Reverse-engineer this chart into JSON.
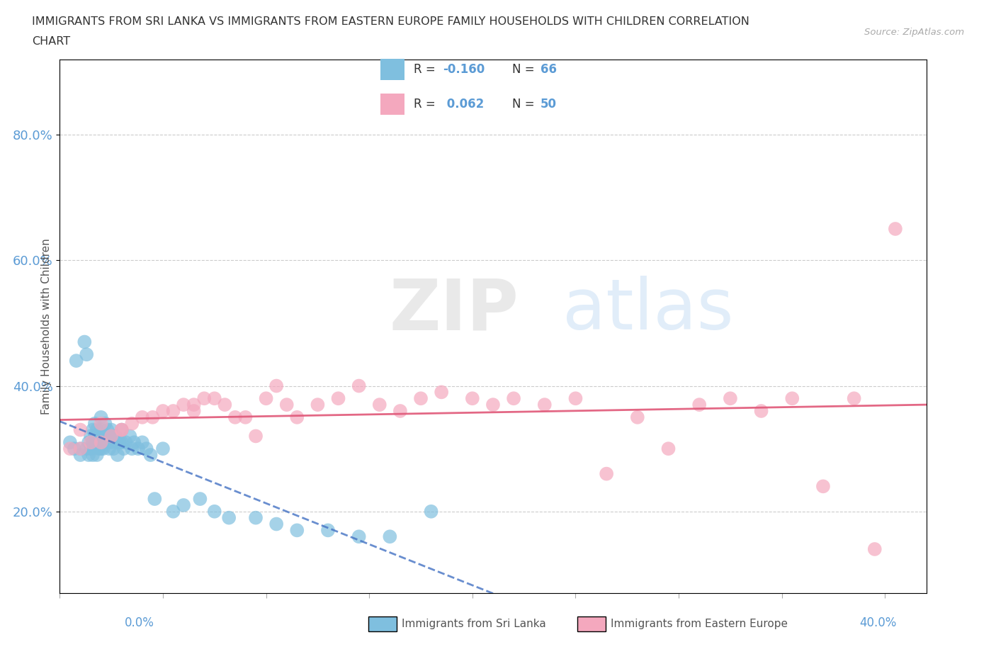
{
  "title_line1": "IMMIGRANTS FROM SRI LANKA VS IMMIGRANTS FROM EASTERN EUROPE FAMILY HOUSEHOLDS WITH CHILDREN CORRELATION",
  "title_line2": "CHART",
  "source_text": "Source: ZipAtlas.com",
  "ylabel": "Family Households with Children",
  "ytick_values": [
    0.2,
    0.4,
    0.6,
    0.8
  ],
  "xlim": [
    0.0,
    0.42
  ],
  "ylim": [
    0.07,
    0.92
  ],
  "sri_lanka_color": "#7fbfdf",
  "eastern_europe_color": "#f4a8be",
  "sri_lanka_trend_color": "#4472c4",
  "eastern_europe_trend_color": "#e05878",
  "legend_label_1": "Immigrants from Sri Lanka",
  "legend_label_2": "Immigrants from Eastern Europe",
  "sri_lanka_x": [
    0.005,
    0.007,
    0.008,
    0.01,
    0.01,
    0.012,
    0.013,
    0.013,
    0.014,
    0.014,
    0.015,
    0.015,
    0.016,
    0.016,
    0.016,
    0.017,
    0.017,
    0.018,
    0.018,
    0.018,
    0.019,
    0.019,
    0.02,
    0.02,
    0.02,
    0.021,
    0.021,
    0.022,
    0.022,
    0.023,
    0.023,
    0.024,
    0.024,
    0.025,
    0.025,
    0.026,
    0.026,
    0.027,
    0.028,
    0.028,
    0.029,
    0.03,
    0.03,
    0.031,
    0.032,
    0.034,
    0.035,
    0.036,
    0.038,
    0.04,
    0.042,
    0.044,
    0.046,
    0.05,
    0.055,
    0.06,
    0.068,
    0.075,
    0.082,
    0.095,
    0.105,
    0.115,
    0.13,
    0.145,
    0.16,
    0.18
  ],
  "sri_lanka_y": [
    0.31,
    0.3,
    0.44,
    0.3,
    0.29,
    0.47,
    0.45,
    0.3,
    0.31,
    0.29,
    0.32,
    0.3,
    0.33,
    0.31,
    0.29,
    0.34,
    0.32,
    0.33,
    0.31,
    0.29,
    0.32,
    0.3,
    0.35,
    0.33,
    0.3,
    0.32,
    0.3,
    0.34,
    0.32,
    0.33,
    0.31,
    0.32,
    0.3,
    0.33,
    0.31,
    0.32,
    0.3,
    0.32,
    0.31,
    0.29,
    0.31,
    0.33,
    0.31,
    0.3,
    0.31,
    0.32,
    0.3,
    0.31,
    0.3,
    0.31,
    0.3,
    0.29,
    0.22,
    0.3,
    0.2,
    0.21,
    0.22,
    0.2,
    0.19,
    0.19,
    0.18,
    0.17,
    0.17,
    0.16,
    0.16,
    0.2
  ],
  "eastern_europe_x": [
    0.005,
    0.01,
    0.015,
    0.02,
    0.025,
    0.03,
    0.035,
    0.04,
    0.045,
    0.05,
    0.055,
    0.06,
    0.065,
    0.07,
    0.075,
    0.08,
    0.09,
    0.095,
    0.1,
    0.105,
    0.11,
    0.115,
    0.125,
    0.135,
    0.145,
    0.155,
    0.165,
    0.175,
    0.185,
    0.2,
    0.21,
    0.22,
    0.235,
    0.25,
    0.265,
    0.28,
    0.295,
    0.31,
    0.325,
    0.34,
    0.355,
    0.37,
    0.385,
    0.395,
    0.405,
    0.01,
    0.02,
    0.03,
    0.065,
    0.085
  ],
  "eastern_europe_y": [
    0.3,
    0.3,
    0.31,
    0.31,
    0.32,
    0.33,
    0.34,
    0.35,
    0.35,
    0.36,
    0.36,
    0.37,
    0.37,
    0.38,
    0.38,
    0.37,
    0.35,
    0.32,
    0.38,
    0.4,
    0.37,
    0.35,
    0.37,
    0.38,
    0.4,
    0.37,
    0.36,
    0.38,
    0.39,
    0.38,
    0.37,
    0.38,
    0.37,
    0.38,
    0.26,
    0.35,
    0.3,
    0.37,
    0.38,
    0.36,
    0.38,
    0.24,
    0.38,
    0.14,
    0.65,
    0.33,
    0.34,
    0.33,
    0.36,
    0.35
  ]
}
